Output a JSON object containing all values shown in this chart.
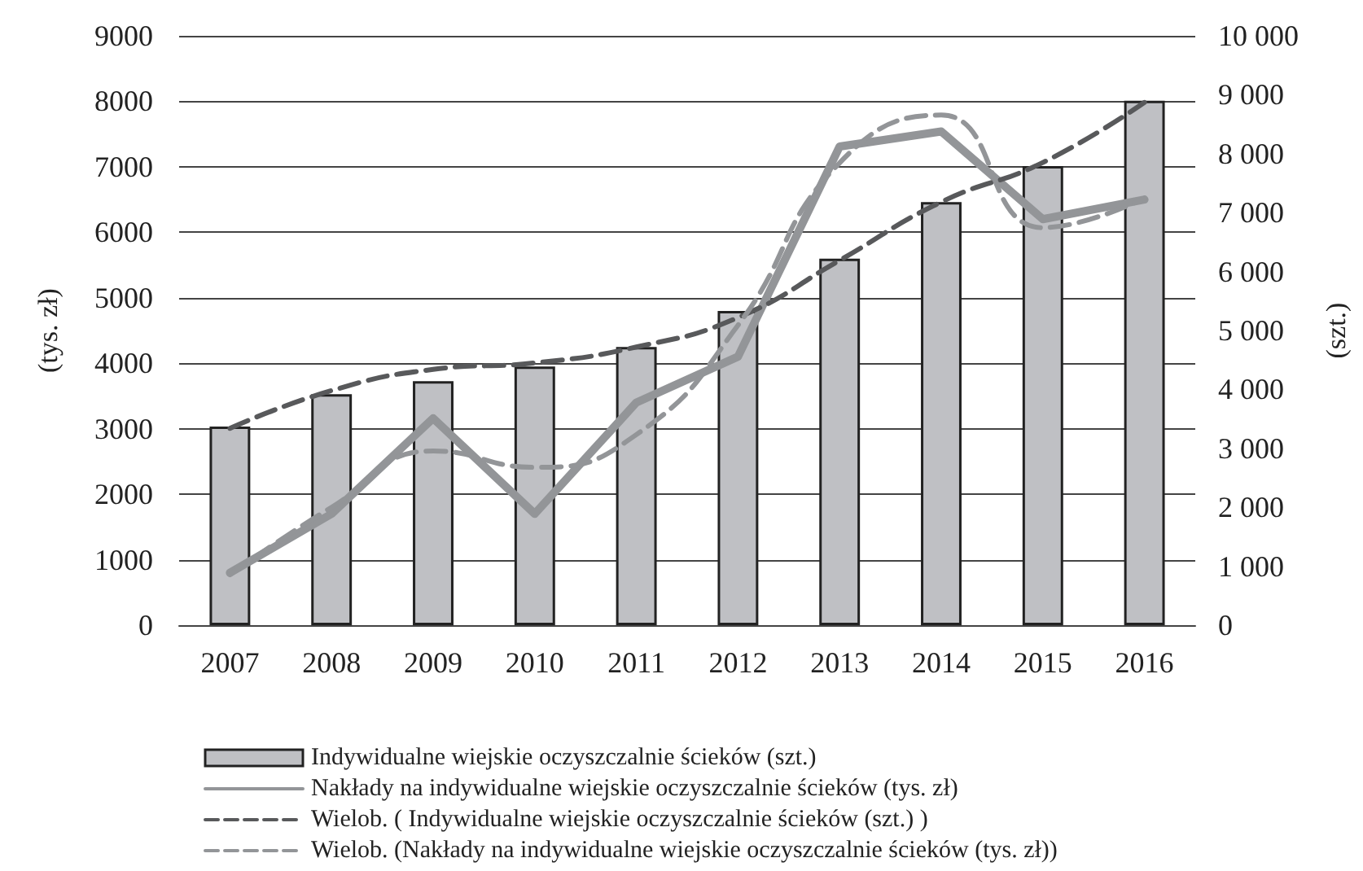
{
  "chart_data": {
    "type": "bar",
    "ylabel": "(tys. zł)",
    "y2label": "(szt.)",
    "categories": [
      "2007",
      "2008",
      "2009",
      "2010",
      "2011",
      "2012",
      "2013",
      "2014",
      "2015",
      "2016"
    ],
    "series": [
      {
        "name": "Indywidualne wiejskie oczyszczalnie ścieków (szt.)",
        "axis": "y2",
        "color": "#bfc0c4",
        "values": [
          3370,
          3920,
          4140,
          4390,
          4720,
          5330,
          6220,
          7180,
          7790,
          8900
        ]
      },
      {
        "name": "Nakłady na indywidualne wiejskie oczyszczalnie ścieków (tys. zł)",
        "type": "line",
        "color": "#939598",
        "line_style": "solid",
        "values": [
          800,
          1700,
          3160,
          1700,
          3400,
          4100,
          7310,
          7540,
          6200,
          6500
        ]
      },
      {
        "name": "Wielob. ( Indywidualne wiejskie oczyszczalnie ścieków (szt.) )",
        "type": "line",
        "axis": "y2",
        "color": "#58595b",
        "line_style": "dashed",
        "values": [
          3340,
          3980,
          4340,
          4450,
          4720,
          5220,
          6190,
          7180,
          7850,
          8870
        ]
      },
      {
        "name": "Wielob. (Nakłady na indywidualne wiejskie oczyszczalnie ścieków (tys. zł))",
        "type": "line",
        "color": "#939598",
        "line_style": "dashed",
        "values": [
          770,
          1800,
          2660,
          2410,
          2910,
          4580,
          7060,
          7790,
          6070,
          6520
        ]
      }
    ],
    "ylim": [
      0,
      9000
    ],
    "yticks": [
      0,
      1000,
      2000,
      3000,
      4000,
      5000,
      6000,
      7000,
      8000,
      9000
    ],
    "y2lim": [
      0,
      10000
    ],
    "y2ticks": [
      {
        "value": 0,
        "label": "0"
      },
      {
        "value": 1000,
        "label": "1 000"
      },
      {
        "value": 2000,
        "label": "2 000"
      },
      {
        "value": 3000,
        "label": "3 000"
      },
      {
        "value": 4000,
        "label": "4 000"
      },
      {
        "value": 5000,
        "label": "5 000"
      },
      {
        "value": 6000,
        "label": "6 000"
      },
      {
        "value": 7000,
        "label": "7 000"
      },
      {
        "value": 8000,
        "label": "8 000"
      },
      {
        "value": 9000,
        "label": "9 000"
      },
      {
        "value": 10000,
        "label": "10 000"
      }
    ],
    "grid": "y",
    "legend": "bottom",
    "marker": "none"
  }
}
